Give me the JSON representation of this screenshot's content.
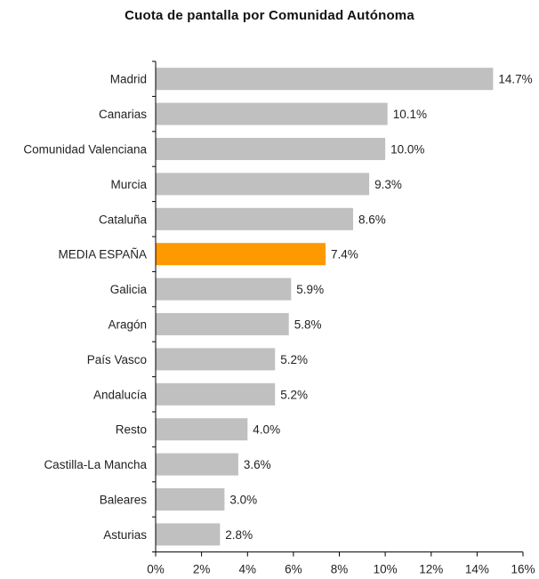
{
  "chart_data": {
    "type": "bar",
    "orientation": "horizontal",
    "title": "Cuota de pantalla por Comunidad Autónoma",
    "xlabel": "",
    "ylabel": "",
    "categories": [
      "Madrid",
      "Canarias",
      "Comunidad Valenciana",
      "Murcia",
      "Cataluña",
      "MEDIA ESPAÑA",
      "Galicia",
      "Aragón",
      "País Vasco",
      "Andalucía",
      "Resto",
      "Castilla-La Mancha",
      "Baleares",
      "Asturias"
    ],
    "values": [
      14.7,
      10.1,
      10.0,
      9.3,
      8.6,
      7.4,
      5.9,
      5.8,
      5.2,
      5.2,
      4.0,
      3.6,
      3.0,
      2.8
    ],
    "data_labels": [
      "14.7%",
      "10.1%",
      "10.0%",
      "9.3%",
      "8.6%",
      "7.4%",
      "5.9%",
      "5.8%",
      "5.2%",
      "5.2%",
      "4.0%",
      "3.6%",
      "3.0%",
      "2.8%"
    ],
    "xlim": [
      0,
      16
    ],
    "xticks": [
      0,
      2,
      4,
      6,
      8,
      10,
      12,
      14,
      16
    ],
    "xtick_labels": [
      "0%",
      "2%",
      "4%",
      "6%",
      "8%",
      "10%",
      "12%",
      "14%",
      "16%"
    ],
    "grid": false,
    "legend": "none",
    "bar_color": "#c0c0c0",
    "highlight_category": "MEDIA ESPAÑA",
    "highlight_color": "#ff9900"
  }
}
